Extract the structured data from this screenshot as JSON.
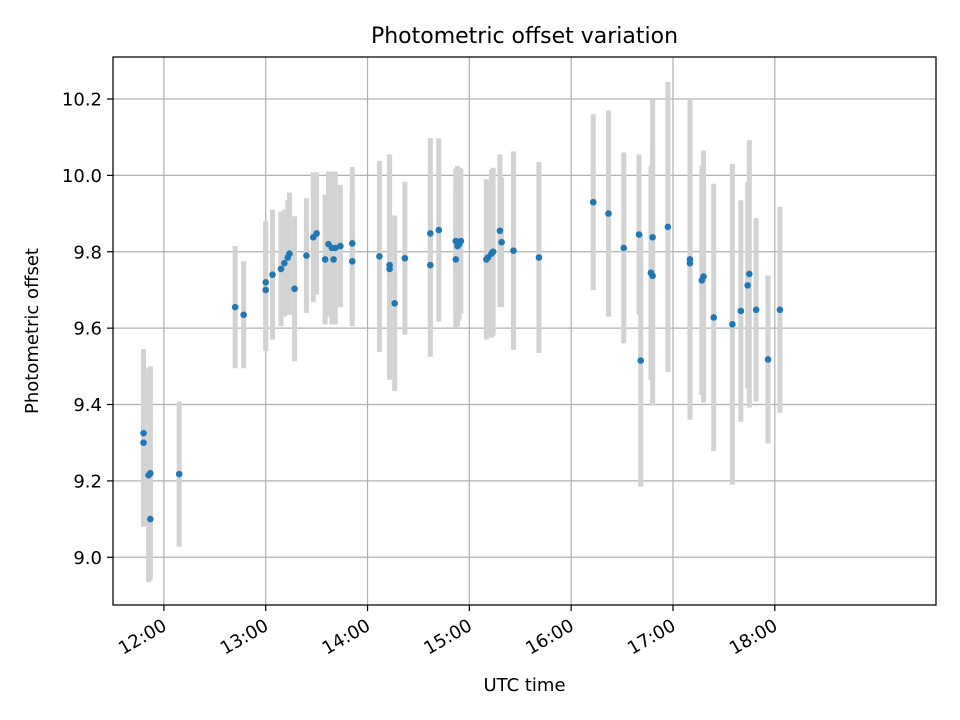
{
  "chart_data": {
    "type": "scatter",
    "title": "Photometric offset variation",
    "xlabel": "UTC time",
    "ylabel": "Photometric offset",
    "x_format": "HH:MM (UTC)",
    "xlim": [
      "11:30",
      "19:35"
    ],
    "ylim": [
      8.875,
      10.31
    ],
    "x_ticks": [
      "12:00",
      "13:00",
      "14:00",
      "15:00",
      "16:00",
      "17:00",
      "18:00"
    ],
    "y_ticks": [
      9.0,
      9.2,
      9.4,
      9.6,
      9.8,
      10.0,
      10.2
    ],
    "grid": true,
    "legend": "none",
    "colors": {
      "points": "#1f77b4",
      "error_bars": "#d3d3d3",
      "grid": "#b0b0b0"
    },
    "points": [
      {
        "x": "11:48",
        "y": 9.325,
        "err": 0.22
      },
      {
        "x": "11:48",
        "y": 9.3,
        "err": 0.22
      },
      {
        "x": "11:51",
        "y": 9.215,
        "err": 0.28
      },
      {
        "x": "11:52",
        "y": 9.22,
        "err": 0.28
      },
      {
        "x": "11:52",
        "y": 9.1,
        "err": 0.15
      },
      {
        "x": "12:09",
        "y": 9.218,
        "err": 0.19
      },
      {
        "x": "12:42",
        "y": 9.655,
        "err": 0.16
      },
      {
        "x": "12:47",
        "y": 9.635,
        "err": 0.14
      },
      {
        "x": "13:00",
        "y": 9.72,
        "err": 0.16
      },
      {
        "x": "13:00",
        "y": 9.7,
        "err": 0.16
      },
      {
        "x": "13:04",
        "y": 9.74,
        "err": 0.17
      },
      {
        "x": "13:09",
        "y": 9.755,
        "err": 0.15
      },
      {
        "x": "13:11",
        "y": 9.77,
        "err": 0.14
      },
      {
        "x": "13:13",
        "y": 9.785,
        "err": 0.15
      },
      {
        "x": "13:14",
        "y": 9.795,
        "err": 0.16
      },
      {
        "x": "13:17",
        "y": 9.703,
        "err": 0.19
      },
      {
        "x": "13:24",
        "y": 9.79,
        "err": 0.15
      },
      {
        "x": "13:28",
        "y": 9.838,
        "err": 0.17
      },
      {
        "x": "13:30",
        "y": 9.848,
        "err": 0.16
      },
      {
        "x": "13:35",
        "y": 9.78,
        "err": 0.17
      },
      {
        "x": "13:37",
        "y": 9.82,
        "err": 0.19
      },
      {
        "x": "13:39",
        "y": 9.81,
        "err": 0.2
      },
      {
        "x": "13:40",
        "y": 9.78,
        "err": 0.17
      },
      {
        "x": "13:41",
        "y": 9.81,
        "err": 0.2
      },
      {
        "x": "13:44",
        "y": 9.815,
        "err": 0.16
      },
      {
        "x": "13:51",
        "y": 9.822,
        "err": 0.2
      },
      {
        "x": "13:51",
        "y": 9.775,
        "err": 0.17
      },
      {
        "x": "14:07",
        "y": 9.788,
        "err": 0.25
      },
      {
        "x": "14:13",
        "y": 9.765,
        "err": 0.29
      },
      {
        "x": "14:13",
        "y": 9.755,
        "err": 0.29
      },
      {
        "x": "14:16",
        "y": 9.665,
        "err": 0.23
      },
      {
        "x": "14:22",
        "y": 9.783,
        "err": 0.2
      },
      {
        "x": "14:37",
        "y": 9.848,
        "err": 0.25
      },
      {
        "x": "14:37",
        "y": 9.765,
        "err": 0.24
      },
      {
        "x": "14:42",
        "y": 9.857,
        "err": 0.24
      },
      {
        "x": "14:52",
        "y": 9.828,
        "err": 0.19
      },
      {
        "x": "14:52",
        "y": 9.78,
        "err": 0.18
      },
      {
        "x": "14:53",
        "y": 9.815,
        "err": 0.21
      },
      {
        "x": "14:54",
        "y": 9.82,
        "err": 0.2
      },
      {
        "x": "14:55",
        "y": 9.828,
        "err": 0.19
      },
      {
        "x": "15:10",
        "y": 9.78,
        "err": 0.21
      },
      {
        "x": "15:11",
        "y": 9.785,
        "err": 0.2
      },
      {
        "x": "15:13",
        "y": 9.795,
        "err": 0.22
      },
      {
        "x": "15:14",
        "y": 9.8,
        "err": 0.22
      },
      {
        "x": "15:18",
        "y": 9.855,
        "err": 0.2
      },
      {
        "x": "15:19",
        "y": 9.825,
        "err": 0.17
      },
      {
        "x": "15:26",
        "y": 9.803,
        "err": 0.26
      },
      {
        "x": "15:41",
        "y": 9.785,
        "err": 0.25
      },
      {
        "x": "16:13",
        "y": 9.93,
        "err": 0.23
      },
      {
        "x": "16:22",
        "y": 9.9,
        "err": 0.27
      },
      {
        "x": "16:31",
        "y": 9.81,
        "err": 0.25
      },
      {
        "x": "16:40",
        "y": 9.845,
        "err": 0.21
      },
      {
        "x": "16:41",
        "y": 9.515,
        "err": 0.33
      },
      {
        "x": "16:47",
        "y": 9.745,
        "err": 0.28
      },
      {
        "x": "16:48",
        "y": 9.737,
        "err": 0.34
      },
      {
        "x": "16:48",
        "y": 9.838,
        "err": 0.36
      },
      {
        "x": "16:57",
        "y": 9.865,
        "err": 0.38
      },
      {
        "x": "17:10",
        "y": 9.78,
        "err": 0.42
      },
      {
        "x": "17:10",
        "y": 9.77,
        "err": 0.4
      },
      {
        "x": "17:17",
        "y": 9.725,
        "err": 0.3
      },
      {
        "x": "17:18",
        "y": 9.735,
        "err": 0.33
      },
      {
        "x": "17:24",
        "y": 9.628,
        "err": 0.35
      },
      {
        "x": "17:35",
        "y": 9.61,
        "err": 0.42
      },
      {
        "x": "17:40",
        "y": 9.645,
        "err": 0.29
      },
      {
        "x": "17:44",
        "y": 9.712,
        "err": 0.27
      },
      {
        "x": "17:45",
        "y": 9.742,
        "err": 0.35
      },
      {
        "x": "17:49",
        "y": 9.648,
        "err": 0.24
      },
      {
        "x": "17:56",
        "y": 9.518,
        "err": 0.22
      },
      {
        "x": "18:03",
        "y": 9.648,
        "err": 0.27
      }
    ]
  }
}
